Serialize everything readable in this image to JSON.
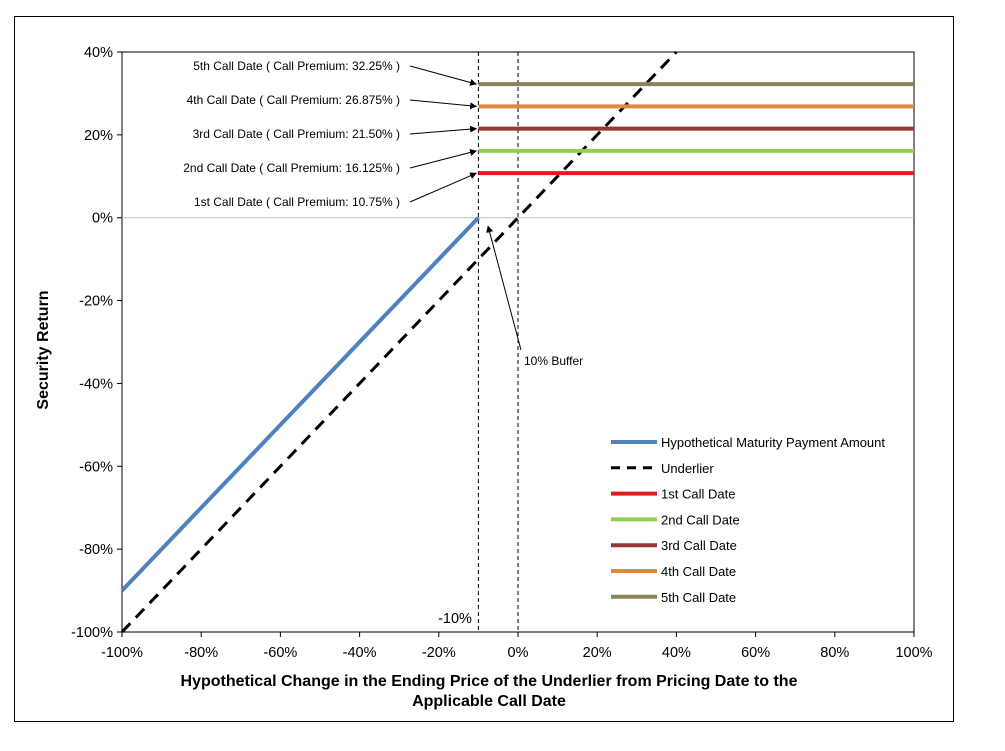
{
  "chart_data": {
    "type": "line",
    "xlabel_lines": [
      "Hypothetical Change in the Ending Price of the Underlier from Pricing Date to the",
      "Applicable Call Date"
    ],
    "ylabel": "Security Return",
    "xlim": [
      -100,
      100
    ],
    "ylim": [
      -100,
      40
    ],
    "x_ticks": [
      -100,
      -80,
      -60,
      -40,
      -20,
      0,
      20,
      40,
      60,
      80,
      100
    ],
    "y_ticks": [
      -100,
      -80,
      -60,
      -40,
      -20,
      0,
      20,
      40
    ],
    "x_tick_labels": [
      "-100%",
      "-80%",
      "-60%",
      "-40%",
      "-20%",
      "0%",
      "20%",
      "40%",
      "60%",
      "80%",
      "100%"
    ],
    "y_tick_labels": [
      "-100%",
      "-80%",
      "-60%",
      "-40%",
      "-20%",
      "0%",
      "20%",
      "40%"
    ],
    "series": [
      {
        "name": "Hypothetical Maturity Payment Amount",
        "color": "#4F81BD",
        "dash": false,
        "x": [
          -100,
          -10
        ],
        "y": [
          -90,
          0
        ]
      },
      {
        "name": "Underlier",
        "color": "#000000",
        "dash": true,
        "x": [
          -100,
          40
        ],
        "y": [
          -100,
          40
        ]
      },
      {
        "name": "1st Call Date",
        "color": "#E41A1C",
        "dash": false,
        "x": [
          -10,
          100
        ],
        "y": [
          10.75,
          10.75
        ]
      },
      {
        "name": "2nd Call Date",
        "color": "#92D050",
        "dash": false,
        "x": [
          -10,
          100
        ],
        "y": [
          16.125,
          16.125
        ]
      },
      {
        "name": "3rd Call Date",
        "color": "#963634",
        "dash": false,
        "x": [
          -10,
          100
        ],
        "y": [
          21.5,
          21.5
        ]
      },
      {
        "name": "4th Call Date",
        "color": "#E0883C",
        "dash": false,
        "x": [
          -10,
          100
        ],
        "y": [
          26.875,
          26.875
        ]
      },
      {
        "name": "5th Call Date",
        "color": "#8C8456",
        "dash": false,
        "x": [
          -10,
          100
        ],
        "y": [
          32.25,
          32.25
        ]
      }
    ],
    "call_annotations": [
      {
        "text": "5th Call Date ( Call Premium: 32.25% )",
        "y": 32.25
      },
      {
        "text": "4th Call Date ( Call Premium: 26.875% )",
        "y": 26.875
      },
      {
        "text": "3rd Call Date ( Call Premium: 21.50% )",
        "y": 21.5
      },
      {
        "text": "2nd Call Date ( Call Premium: 16.125% )",
        "y": 16.125
      },
      {
        "text": "1st Call Date ( Call Premium: 10.75% )",
        "y": 10.75
      }
    ],
    "buffer_label": "10% Buffer",
    "buffer_level_label": "-10%",
    "buffer_x": -10,
    "legend_position": "bottom-right"
  }
}
